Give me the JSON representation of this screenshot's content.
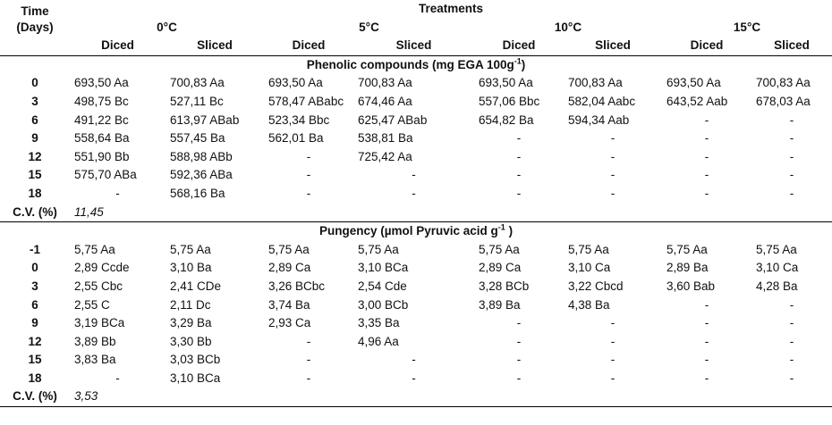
{
  "header": {
    "time_label": "Time",
    "time_unit": "(Days)",
    "treatments_label": "Treatments",
    "temperatures": [
      "0°C",
      "5°C",
      "10°C",
      "15°C"
    ],
    "cuts": [
      "Diced",
      "Sliced",
      "Diced",
      "Sliced",
      "Diced",
      "Sliced",
      "Diced",
      "Sliced"
    ]
  },
  "sections": [
    {
      "title": "Phenolic compounds (mg EGA 100g",
      "title_sup": "-1",
      "title_end": ")",
      "rows": [
        {
          "time": "0",
          "values": [
            "693,50 Aa",
            "700,83 Aa",
            "693,50 Aa",
            "700,83 Aa",
            "693,50 Aa",
            "700,83 Aa",
            "693,50 Aa",
            "700,83 Aa"
          ]
        },
        {
          "time": "3",
          "values": [
            "498,75 Bc",
            "527,11 Bc",
            "578,47 ABabc",
            "674,46 Aa",
            "557,06 Bbc",
            "582,04 Aabc",
            "643,52 Aab",
            "678,03 Aa"
          ]
        },
        {
          "time": "6",
          "values": [
            "491,22 Bc",
            "613,97 ABab",
            "523,34 Bbc",
            "625,47 ABab",
            "654,82 Ba",
            "594,34 Aab",
            "-",
            "-"
          ]
        },
        {
          "time": "9",
          "values": [
            "558,64 Ba",
            "557,45 Ba",
            "562,01 Ba",
            "538,81 Ba",
            "-",
            "-",
            "-",
            "-"
          ]
        },
        {
          "time": "12",
          "values": [
            "551,90 Bb",
            "588,98 ABb",
            "-",
            "725,42 Aa",
            "-",
            "-",
            "-",
            "-"
          ]
        },
        {
          "time": "15",
          "values": [
            "575,70 ABa",
            "592,36 ABa",
            "-",
            "-",
            "-",
            "-",
            "-",
            "-"
          ]
        },
        {
          "time": "18",
          "values": [
            "-",
            "568,16 Ba",
            "-",
            "-",
            "-",
            "-",
            "-",
            "-"
          ]
        }
      ],
      "cv_label": "C.V. (%)",
      "cv_value": "11,45"
    },
    {
      "title": "Pungency (µmol Pyruvic acid g",
      "title_sup": "-1",
      "title_end": " )",
      "rows": [
        {
          "time": "-1",
          "values": [
            "5,75 Aa",
            "5,75 Aa",
            "5,75 Aa",
            "5,75 Aa",
            "5,75 Aa",
            "5,75 Aa",
            "5,75 Aa",
            "5,75 Aa"
          ]
        },
        {
          "time": "0",
          "values": [
            "2,89 Ccde",
            "3,10 Ba",
            "2,89 Ca",
            "3,10 BCa",
            "2,89 Ca",
            "3,10 Ca",
            "2,89 Ba",
            "3,10 Ca"
          ]
        },
        {
          "time": "3",
          "values": [
            "2,55 Cbc",
            "2,41 CDe",
            "3,26 BCbc",
            "2,54 Cde",
            "3,28 BCb",
            "3,22 Cbcd",
            "3,60 Bab",
            "4,28 Ba"
          ]
        },
        {
          "time": "6",
          "values": [
            "2,55 C",
            "2,11 Dc",
            "3,74 Ba",
            "3,00 BCb",
            "3,89 Ba",
            "4,38 Ba",
            "-",
            "-"
          ]
        },
        {
          "time": "9",
          "values": [
            "3,19 BCa",
            "3,29 Ba",
            "2,93 Ca",
            "3,35 Ba",
            "-",
            "-",
            "-",
            "-"
          ]
        },
        {
          "time": "12",
          "values": [
            "3,89 Bb",
            "3,30 Bb",
            "-",
            "4,96 Aa",
            "-",
            "-",
            "-",
            "-"
          ]
        },
        {
          "time": "15",
          "values": [
            "3,83 Ba",
            "3,03 BCb",
            "-",
            "-",
            "-",
            "-",
            "-",
            "-"
          ]
        },
        {
          "time": "18",
          "values": [
            "-",
            "3,10 BCa",
            "-",
            "-",
            "-",
            "-",
            "-",
            "-"
          ]
        }
      ],
      "cv_label": "C.V. (%)",
      "cv_value": "3,53"
    }
  ]
}
